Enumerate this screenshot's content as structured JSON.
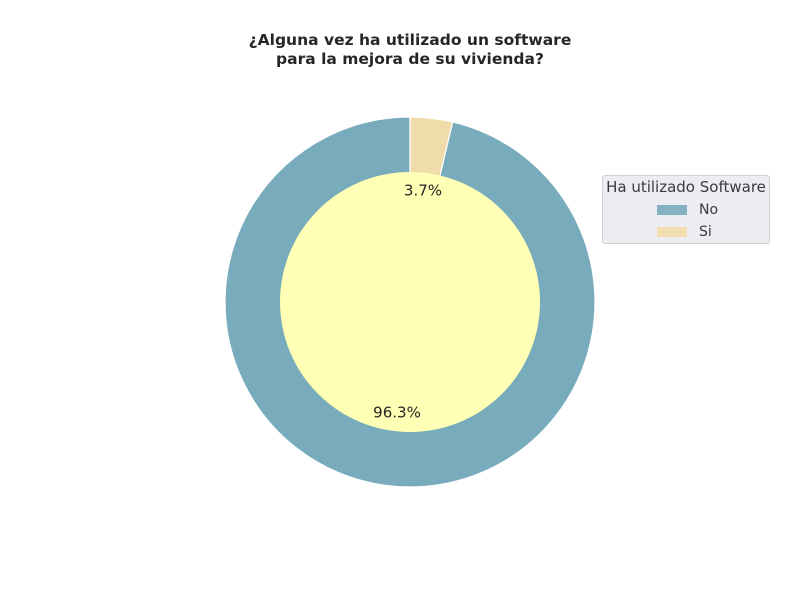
{
  "chart_data": {
    "type": "pie",
    "variant": "donut",
    "title": [
      "¿Alguna vez ha utilizado un software",
      "para la mejora de su vivienda?"
    ],
    "categories": [
      "No",
      "Si"
    ],
    "values": [
      96.3,
      3.7
    ],
    "value_labels": [
      "96.3%",
      "3.7%"
    ],
    "colors": [
      "#78abbb",
      "#f0dcaa"
    ],
    "center_color": "#ffffb5",
    "start_angle_deg": 90,
    "direction": "counterclockwise",
    "legend": {
      "title": "Ha utilizado Software",
      "entries": [
        "No",
        "Si"
      ],
      "placement": "right"
    }
  }
}
